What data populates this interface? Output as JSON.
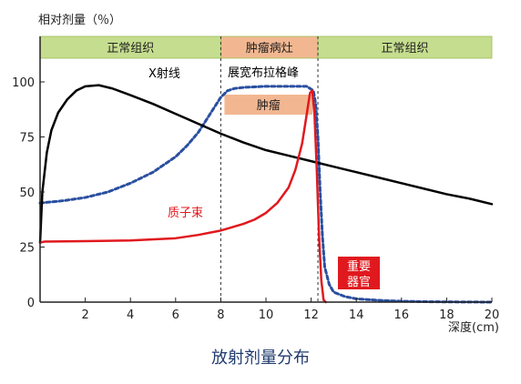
{
  "chart_data": {
    "type": "line",
    "ylabel": "相对剂量（％）",
    "xlabel": "深度(cm)",
    "caption": "放射剂量分布",
    "xlim": [
      0,
      20
    ],
    "ylim": [
      0,
      100
    ],
    "x_ticks": [
      2,
      4,
      6,
      8,
      10,
      12,
      14,
      16,
      18,
      20
    ],
    "y_ticks": [
      0,
      25,
      50,
      75,
      100
    ],
    "grid": false,
    "regions": [
      {
        "label": "正常组织",
        "x0": 0,
        "x1": 8
      },
      {
        "label": "肿瘤病灶",
        "x0": 8,
        "x1": 12.3
      },
      {
        "label": "正常组织",
        "x0": 12.3,
        "x1": 20
      }
    ],
    "tumor_bar_label": "肿瘤",
    "annotations": {
      "xray": "X射线",
      "proton": "质子束",
      "bragg": "展宽布拉格峰",
      "organ": [
        "重要",
        "器官"
      ]
    },
    "colors": {
      "xray": "#000000",
      "proton": "#e0191e",
      "sobp": "#2a4fa0",
      "region_header": "#c5dd8e",
      "region_header_tumor": "#f2b791",
      "organ_box": "#e0191e",
      "caption": "#1f3a6e"
    },
    "series": [
      {
        "name": "X射线",
        "style": "solid",
        "x": [
          0.0,
          0.1,
          0.3,
          0.5,
          0.8,
          1.2,
          1.6,
          2.0,
          2.6,
          3.2,
          4.0,
          5.0,
          6.0,
          7.0,
          8.0,
          9.0,
          10.0,
          11.0,
          12.0,
          13.0,
          14.0,
          15.0,
          16.0,
          17.0,
          18.0,
          19.0,
          20.0
        ],
        "y": [
          27,
          50,
          68,
          78,
          86,
          92,
          96,
          98,
          98.5,
          97,
          94,
          90,
          85.5,
          81,
          76.5,
          72.5,
          69,
          66.5,
          64,
          61.5,
          59,
          56.5,
          54,
          51.5,
          49,
          47,
          44.5
        ]
      },
      {
        "name": "质子束",
        "style": "solid",
        "x": [
          0.0,
          0.2,
          2.0,
          4.0,
          6.0,
          7.0,
          8.0,
          9.0,
          9.5,
          10.0,
          10.5,
          11.0,
          11.3,
          11.6,
          11.8,
          11.95,
          12.05,
          12.15,
          12.25,
          12.35,
          12.45,
          12.55,
          12.65
        ],
        "y": [
          27,
          27.5,
          27.7,
          28,
          29,
          30.5,
          32.5,
          35.5,
          37.5,
          40.5,
          45,
          52,
          60,
          72,
          85,
          95,
          96,
          85,
          60,
          30,
          10,
          1,
          0
        ]
      },
      {
        "name": "展宽布拉格峰",
        "style": "dashed",
        "x": [
          0.0,
          1.0,
          2.0,
          3.0,
          4.0,
          5.0,
          6.0,
          6.5,
          7.0,
          7.5,
          8.0,
          8.3,
          8.6,
          9.0,
          10.0,
          11.0,
          11.8,
          12.1,
          12.2,
          12.3,
          12.4,
          12.5,
          12.6,
          12.8,
          13.0,
          13.5,
          14.0,
          15.0,
          16.0,
          17.0,
          18.0,
          19.0,
          20.0
        ],
        "y": [
          45,
          46,
          47.5,
          50,
          54,
          59,
          66,
          71,
          77,
          85,
          93,
          96,
          97,
          97.5,
          98,
          98,
          98,
          96,
          90,
          75,
          50,
          30,
          16,
          8,
          4.5,
          2.5,
          1.5,
          0.8,
          0.4,
          0.2,
          0.1,
          0.05,
          0
        ]
      }
    ]
  }
}
